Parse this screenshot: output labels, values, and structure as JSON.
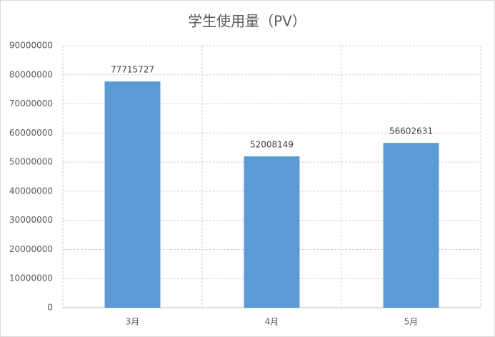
{
  "chart_data": {
    "type": "bar",
    "title": "学生使用量（PV）",
    "categories": [
      "3月",
      "4月",
      "5月"
    ],
    "values": [
      77715727,
      52008149,
      56602631
    ],
    "color": "#5b9bd5",
    "ylim": [
      0,
      90000000
    ],
    "yticks": [
      0,
      10000000,
      20000000,
      30000000,
      40000000,
      50000000,
      60000000,
      70000000,
      80000000,
      90000000
    ],
    "grid": true
  }
}
